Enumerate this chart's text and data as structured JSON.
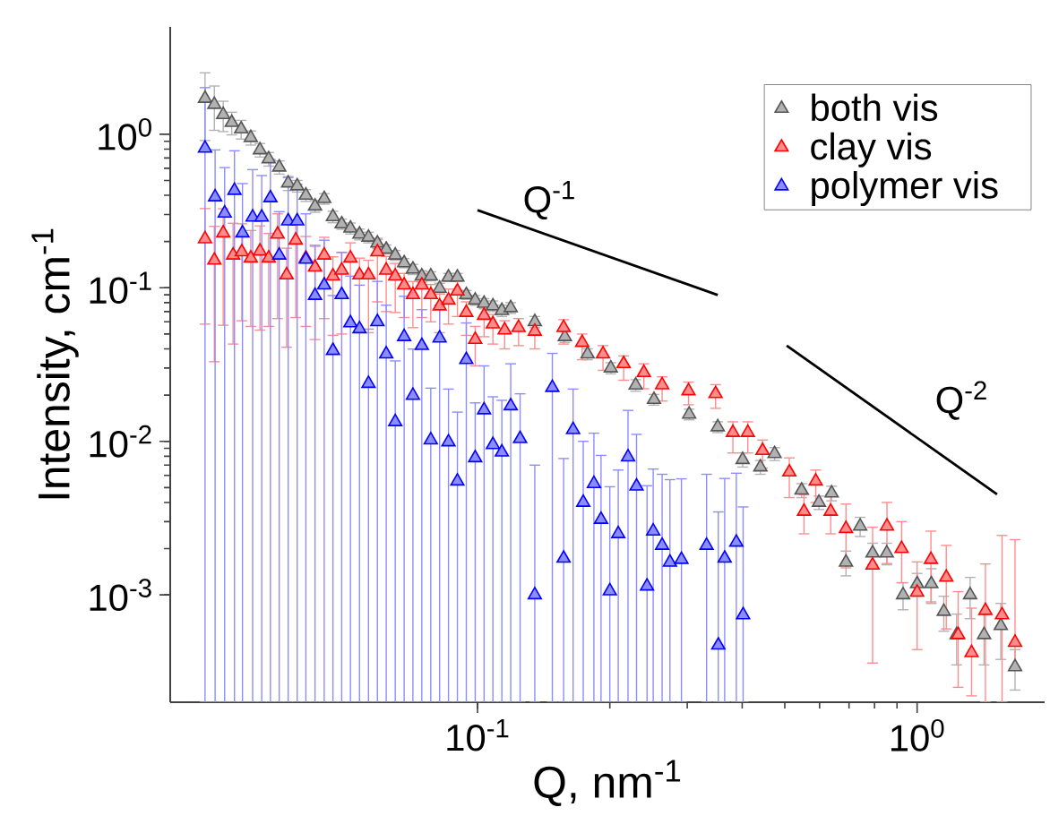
{
  "chart_data": {
    "type": "scatter",
    "xlabel": "Q, nm$^{-1}$",
    "ylabel": "Intensity, cm$^{-1}$",
    "log": "xy",
    "marker": "triangle",
    "legend": "top right",
    "xlim": [
      0.02,
      1.95
    ],
    "ylim": [
      0.0002,
      5
    ],
    "xticks": [
      {
        "value": 0.1,
        "label": "10$^{-1}$"
      },
      {
        "value": 1,
        "label": "10$^{0}$"
      }
    ],
    "yticks": [
      {
        "value": 0.001,
        "label": "10$^{-3}$"
      },
      {
        "value": 0.01,
        "label": "10$^{-2}$"
      },
      {
        "value": 0.1,
        "label": "10$^{-1}$"
      },
      {
        "value": 1,
        "label": "10$^{0}$"
      }
    ],
    "series": [
      {
        "name": "both vis",
        "color": "#555555",
        "x": [
          0.024,
          0.0252,
          0.0264,
          0.0276,
          0.029,
          0.0305,
          0.032,
          0.0335,
          0.0354,
          0.0371,
          0.0389,
          0.0407,
          0.0427,
          0.0448,
          0.0469,
          0.0491,
          0.0514,
          0.0539,
          0.0565,
          0.0592,
          0.062,
          0.065,
          0.0681,
          0.0713,
          0.0747,
          0.0783,
          0.082,
          0.0859,
          0.09,
          0.0943,
          0.0988,
          0.1035,
          0.1084,
          0.1136,
          0.119,
          0.135,
          0.158,
          0.178,
          0.201,
          0.229,
          0.252,
          0.303,
          0.352,
          0.401,
          0.44,
          0.474,
          0.546,
          0.598,
          0.639,
          0.689,
          0.742,
          0.792,
          0.853,
          0.929,
          1.0,
          1.077,
          1.15,
          1.23,
          1.32,
          1.42,
          1.55,
          1.67
        ],
        "values": [
          1.71,
          1.56,
          1.34,
          1.19,
          1.08,
          0.95,
          0.79,
          0.69,
          0.61,
          0.48,
          0.46,
          0.4,
          0.34,
          0.38,
          0.29,
          0.26,
          0.244,
          0.223,
          0.213,
          0.195,
          0.178,
          0.163,
          0.145,
          0.132,
          0.119,
          0.119,
          0.099,
          0.117,
          0.117,
          0.09,
          0.083,
          0.079,
          0.076,
          0.071,
          0.074,
          0.06,
          0.048,
          0.037,
          0.03,
          0.0232,
          0.0187,
          0.015,
          0.0124,
          0.0076,
          0.0068,
          0.0083,
          0.0048,
          0.004,
          0.0046,
          0.00163,
          0.0028,
          0.00187,
          0.00187,
          0.001,
          0.00118,
          0.00118,
          0.00078,
          0.00055,
          0.001,
          0.00055,
          0.00063,
          0.00034
        ],
        "errors": [
          0.8,
          0.5,
          0.3,
          0.2,
          0.15,
          0.1,
          0.08,
          0.07,
          0.06,
          0.05,
          0.04,
          0.035,
          0.03,
          0.03,
          0.025,
          0.02,
          0.02,
          0.018,
          0.017,
          0.015,
          0.012,
          0.012,
          0.01,
          0.01,
          0.01,
          0.008,
          0.008,
          0.007,
          0.007,
          0.006,
          0.006,
          0.006,
          0.006,
          0.006,
          0.006,
          0.005,
          0.004,
          0.003,
          0.0025,
          0.002,
          0.0015,
          0.0012,
          0.001,
          0.0008,
          0.0007,
          0.0008,
          0.0005,
          0.0004,
          0.0005,
          0.0003,
          0.0004,
          0.0003,
          0.0003,
          0.0002,
          0.0002,
          0.0003,
          0.0002,
          0.0002,
          0.0003,
          0.0002,
          0.00025,
          0.0001
        ]
      },
      {
        "name": "clay vis",
        "color": "#ff0000",
        "x": [
          0.024,
          0.0252,
          0.0264,
          0.0278,
          0.0291,
          0.0305,
          0.032,
          0.0335,
          0.0351,
          0.0368,
          0.0386,
          0.0407,
          0.0427,
          0.0448,
          0.0469,
          0.0491,
          0.0514,
          0.0539,
          0.0565,
          0.0592,
          0.062,
          0.065,
          0.0681,
          0.0713,
          0.0747,
          0.0783,
          0.082,
          0.0859,
          0.09,
          0.0943,
          0.0988,
          0.1035,
          0.1084,
          0.1153,
          0.124,
          0.135,
          0.157,
          0.173,
          0.193,
          0.215,
          0.239,
          0.263,
          0.302,
          0.348,
          0.381,
          0.412,
          0.445,
          0.512,
          0.553,
          0.588,
          0.636,
          0.689,
          0.792,
          0.854,
          0.922,
          1.0,
          1.075,
          1.165,
          1.24,
          1.33,
          1.43,
          1.56,
          1.67
        ],
        "values": [
          0.208,
          0.151,
          0.227,
          0.163,
          0.171,
          0.156,
          0.173,
          0.156,
          0.223,
          0.121,
          0.204,
          0.156,
          0.136,
          0.163,
          0.119,
          0.13,
          0.156,
          0.121,
          0.121,
          0.171,
          0.13,
          0.119,
          0.104,
          0.09,
          0.104,
          0.09,
          0.076,
          0.083,
          0.095,
          0.069,
          0.046,
          0.066,
          0.058,
          0.053,
          0.055,
          0.052,
          0.055,
          0.044,
          0.037,
          0.032,
          0.028,
          0.0233,
          0.0213,
          0.0204,
          0.0114,
          0.0114,
          0.0087,
          0.0063,
          0.0035,
          0.0055,
          0.0035,
          0.0027,
          0.00156,
          0.0028,
          0.002,
          0.00104,
          0.0017,
          0.0013,
          0.00055,
          0.00042,
          0.00079,
          0.00074,
          0.00049
        ],
        "errors": [
          [
            0.058,
            0.328
          ],
          [
            0.033,
            0.251
          ],
          [
            0.057,
            0.327
          ],
          [
            0.043,
            0.263
          ],
          [
            0.061,
            0.261
          ],
          [
            0.056,
            0.236
          ],
          [
            0.053,
            0.253
          ],
          [
            0.056,
            0.226
          ],
          [
            0.063,
            0.303
          ],
          [
            0.041,
            0.181
          ],
          [
            0.064,
            0.274
          ],
          [
            0.056,
            0.216
          ],
          [
            0.046,
            0.186
          ],
          [
            0.063,
            0.213
          ],
          [
            0.049,
            0.159
          ],
          [
            0.05,
            0.17
          ],
          [
            0.056,
            0.196
          ],
          [
            0.051,
            0.156
          ],
          [
            0.051,
            0.151
          ],
          [
            0.081,
            0.206
          ],
          [
            0.07,
            0.16
          ],
          [
            0.069,
            0.144
          ],
          [
            0.064,
            0.124
          ],
          [
            0.055,
            0.11
          ],
          [
            0.064,
            0.124
          ],
          [
            0.06,
            0.105
          ],
          [
            0.051,
            0.091
          ],
          [
            0.058,
            0.098
          ],
          [
            0.065,
            0.11
          ],
          [
            0.049,
            0.081
          ],
          [
            0.031,
            0.056
          ],
          [
            0.048,
            0.076
          ],
          [
            0.043,
            0.067
          ],
          [
            0.04,
            0.061
          ],
          [
            0.042,
            0.063
          ],
          [
            0.04,
            0.059
          ],
          [
            0.043,
            0.062
          ],
          [
            0.034,
            0.05
          ],
          [
            0.029,
            0.042
          ],
          [
            0.025,
            0.036
          ],
          [
            0.022,
            0.032
          ],
          [
            0.0183,
            0.0263
          ],
          [
            0.0173,
            0.0243
          ],
          [
            0.0164,
            0.0234
          ],
          [
            0.0084,
            0.0134
          ],
          [
            0.0084,
            0.0134
          ],
          [
            0.0067,
            0.0102
          ],
          [
            0.0043,
            0.0078
          ],
          [
            0.0025,
            0.0045
          ],
          [
            0.004,
            0.0065
          ],
          [
            0.0025,
            0.0045
          ],
          [
            0.0015,
            0.0039
          ],
          [
            0.00036,
            0.00276
          ],
          [
            0.0016,
            0.004
          ],
          [
            0.0012,
            0.003
          ],
          [
            0.00044,
            0.00164
          ],
          [
            0.0009,
            0.0026
          ],
          [
            0.0006,
            0.0021
          ],
          [
            0.00025,
            0.00105
          ],
          [
            0.00022,
            0.00082
          ],
          [
            0.0002,
            0.00159
          ],
          [
            0.0002,
            0.00244
          ],
          [
            0.00034,
            0.00229
          ]
        ]
      },
      {
        "name": "polymer vis",
        "color": "#0000ff",
        "x": [
          0.024,
          0.0253,
          0.0266,
          0.028,
          0.0292,
          0.0308,
          0.0323,
          0.0338,
          0.0354,
          0.0371,
          0.0389,
          0.0407,
          0.0427,
          0.0448,
          0.0469,
          0.0491,
          0.0514,
          0.0539,
          0.0565,
          0.0592,
          0.062,
          0.065,
          0.0681,
          0.0713,
          0.0747,
          0.0783,
          0.082,
          0.0859,
          0.09,
          0.0943,
          0.0988,
          0.1035,
          0.1084,
          0.1136,
          0.119,
          0.125,
          0.135,
          0.148,
          0.157,
          0.165,
          0.174,
          0.184,
          0.191,
          0.2,
          0.209,
          0.22,
          0.23,
          0.243,
          0.251,
          0.263,
          0.274,
          0.291,
          0.332,
          0.353,
          0.365,
          0.388,
          0.402
        ],
        "values": [
          0.81,
          0.39,
          0.306,
          0.43,
          0.227,
          0.288,
          0.288,
          0.385,
          0.163,
          0.272,
          0.272,
          0.153,
          0.089,
          0.104,
          0.039,
          0.09,
          0.059,
          0.054,
          0.0238,
          0.06,
          0.037,
          0.0134,
          0.048,
          0.0199,
          0.042,
          0.0102,
          0.047,
          0.0099,
          0.0055,
          0.034,
          0.0078,
          0.016,
          0.0095,
          0.0085,
          0.017,
          0.0104,
          0.001,
          0.0224,
          0.00173,
          0.0119,
          0.004,
          0.0053,
          0.0031,
          0.00106,
          0.0025,
          0.0079,
          0.0051,
          0.00114,
          0.0026,
          0.0021,
          0.00163,
          0.0017,
          0.0021,
          0.00047,
          0.00173,
          0.0022,
          0.00074
        ],
        "errors": [
          [
            0.0002,
            2.01
          ],
          [
            0.0002,
            0.79
          ],
          [
            0.0002,
            0.606
          ],
          [
            0.0002,
            0.78
          ],
          [
            0.0002,
            0.477
          ],
          [
            0.0002,
            0.588
          ],
          [
            0.0002,
            0.538
          ],
          [
            0.0002,
            0.685
          ],
          [
            0.0002,
            0.313
          ],
          [
            0.0002,
            0.522
          ],
          [
            0.0002,
            0.472
          ],
          [
            0.0002,
            0.303
          ],
          [
            0.0002,
            0.189
          ],
          [
            0.0002,
            0.204
          ],
          [
            0.0002,
            0.089
          ],
          [
            0.0002,
            0.17
          ],
          [
            0.0002,
            0.119
          ],
          [
            0.0002,
            0.104
          ],
          [
            0.0002,
            0.0538
          ],
          [
            0.0002,
            0.11
          ],
          [
            0.0002,
            0.077
          ],
          [
            0.0002,
            0.0334
          ],
          [
            0.0002,
            0.088
          ],
          [
            0.0002,
            0.0399
          ],
          [
            0.0002,
            0.072
          ],
          [
            0.0002,
            0.0222
          ],
          [
            0.0002,
            0.077
          ],
          [
            0.0002,
            0.0219
          ],
          [
            0.0002,
            0.0155
          ],
          [
            0.0002,
            0.059
          ],
          [
            0.0002,
            0.0178
          ],
          [
            0.0002,
            0.031
          ],
          [
            0.0002,
            0.0195
          ],
          [
            0.0002,
            0.0185
          ],
          [
            0.0002,
            0.032
          ],
          [
            0.0002,
            0.0204
          ],
          [
            0.0002,
            0.007
          ],
          [
            0.0002,
            0.0374
          ],
          [
            0.0002,
            0.00773
          ],
          [
            0.0002,
            0.0219
          ],
          [
            0.0002,
            0.01
          ],
          [
            0.0002,
            0.0113
          ],
          [
            0.0002,
            0.0081
          ],
          [
            0.0002,
            0.00506
          ],
          [
            0.0002,
            0.0065
          ],
          [
            0.0002,
            0.0159
          ],
          [
            0.0002,
            0.0111
          ],
          [
            0.0002,
            0.00514
          ],
          [
            0.0002,
            0.0066
          ],
          [
            0.0002,
            0.0061
          ],
          [
            0.0002,
            0.00563
          ],
          [
            0.0002,
            0.0057
          ],
          [
            0.0002,
            0.0061
          ],
          [
            0.0002,
            0.00347
          ],
          [
            0.0002,
            0.00573
          ],
          [
            0.0002,
            0.0062
          ],
          [
            0.0002,
            0.00374
          ]
        ]
      },
      {
        "name": "Q$^{-1}$",
        "type": "line",
        "marker": "none",
        "color": "#000000",
        "x": [
          0.1,
          0.352
        ],
        "values": [
          0.32,
          0.0897
        ]
      },
      {
        "name": "Q$^{-2}$",
        "type": "line",
        "marker": "none",
        "color": "#000000",
        "x": [
          0.505,
          1.52
        ],
        "values": [
          0.042,
          0.00452
        ]
      }
    ]
  }
}
